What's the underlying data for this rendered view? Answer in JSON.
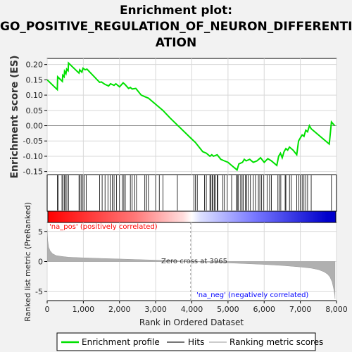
{
  "title_lines": [
    "Enrichment plot:",
    "GO_POSITIVE_REGULATION_OF_NEURON_DIFFERENTI",
    "ATION"
  ],
  "colors": {
    "enrichment_line": "#00e000",
    "hits": "#000000",
    "ranked_fill": "#b0b0b0",
    "grid": "#d8d8d8",
    "pos_label": "#ff0000",
    "neg_label": "#0000ff",
    "zero_cross_line": "#a0a0a0"
  },
  "chart_data": [
    {
      "name": "enrichment-profile",
      "type": "line",
      "ylabel": "Enrichment score (ES)",
      "xlim": [
        0,
        8000
      ],
      "ylim": [
        -0.16,
        0.22
      ],
      "yticks": [
        0.2,
        0.15,
        0.1,
        0.05,
        0.0,
        -0.05,
        -0.1,
        -0.15
      ],
      "ytick_labels": [
        "0.20",
        "0.15",
        "0.10",
        "0.05",
        "0.00",
        "-0.05",
        "-0.10",
        "-0.15"
      ],
      "grid": true,
      "x": [
        0,
        280,
        290,
        420,
        430,
        470,
        480,
        520,
        540,
        580,
        590,
        880,
        900,
        960,
        990,
        1050,
        1100,
        1450,
        1500,
        1600,
        1700,
        1750,
        1850,
        1900,
        2000,
        2100,
        2150,
        2250,
        2300,
        2350,
        2450,
        2600,
        2700,
        2800,
        3000,
        3200,
        3400,
        3965,
        4100,
        4300,
        4400,
        4500,
        4550,
        4600,
        4700,
        4800,
        4900,
        5000,
        5100,
        5200,
        5250,
        5300,
        5400,
        5450,
        5500,
        5600,
        5700,
        5800,
        5900,
        6000,
        6100,
        6200,
        6350,
        6400,
        6450,
        6500,
        6550,
        6600,
        6650,
        6700,
        6800,
        6900,
        6950,
        7000,
        7050,
        7100,
        7150,
        7200,
        7250,
        7300,
        7800,
        7860,
        7950
      ],
      "y": [
        0.15,
        0.118,
        0.16,
        0.145,
        0.165,
        0.16,
        0.178,
        0.17,
        0.185,
        0.18,
        0.205,
        0.172,
        0.183,
        0.175,
        0.188,
        0.183,
        0.185,
        0.142,
        0.143,
        0.135,
        0.13,
        0.137,
        0.132,
        0.137,
        0.127,
        0.14,
        0.135,
        0.122,
        0.125,
        0.12,
        0.122,
        0.1,
        0.095,
        0.09,
        0.07,
        0.05,
        0.025,
        -0.04,
        -0.055,
        -0.085,
        -0.09,
        -0.1,
        -0.095,
        -0.1,
        -0.095,
        -0.11,
        -0.115,
        -0.12,
        -0.13,
        -0.14,
        -0.145,
        -0.125,
        -0.12,
        -0.11,
        -0.115,
        -0.11,
        -0.12,
        -0.115,
        -0.105,
        -0.12,
        -0.108,
        -0.115,
        -0.13,
        -0.1,
        -0.09,
        -0.105,
        -0.085,
        -0.075,
        -0.08,
        -0.07,
        -0.08,
        -0.095,
        -0.05,
        -0.04,
        -0.03,
        -0.035,
        -0.015,
        -0.02,
        0.0,
        -0.01,
        -0.06,
        0.012,
        0.0
      ]
    },
    {
      "name": "hits",
      "type": "scatter",
      "x": [
        285,
        300,
        410,
        440,
        480,
        510,
        545,
        590,
        880,
        910,
        950,
        990,
        1030,
        1080,
        1450,
        1520,
        1600,
        1680,
        1740,
        1800,
        1850,
        1920,
        2000,
        2080,
        2120,
        2160,
        2300,
        2350,
        2420,
        2470,
        2700,
        2750,
        2800,
        3000,
        3100,
        3200,
        3600,
        4060,
        4100,
        4150,
        4350,
        4400,
        4500,
        4520,
        4560,
        4580,
        4620,
        4650,
        4700,
        4720,
        4860,
        4900,
        4980,
        5100,
        5230,
        5260,
        5290,
        5350,
        5390,
        5420,
        5480,
        5520,
        5560,
        5620,
        5700,
        5760,
        5840,
        5880,
        5930,
        5990,
        6080,
        6150,
        6200,
        6380,
        6420,
        6460,
        6580,
        6600,
        6700,
        6750,
        6900,
        6960,
        7000,
        7050,
        7100,
        7150,
        7200,
        7300,
        7860
      ]
    },
    {
      "name": "ranked-list",
      "type": "area",
      "ylabel": "Ranked list metric (PreRanked)",
      "xlabel": "Rank in Ordered Dataset",
      "xlim": [
        0,
        8000
      ],
      "ylim": [
        -6.5,
        6.5
      ],
      "yticks": [
        5,
        0,
        -5
      ],
      "ytick_labels": [
        "5",
        "0",
        "-5"
      ],
      "xticks": [
        0,
        1000,
        2000,
        3000,
        4000,
        5000,
        6000,
        7000,
        8000
      ],
      "xtick_labels": [
        "0",
        "1,000",
        "2,000",
        "3,000",
        "4,000",
        "5,000",
        "6,000",
        "7,000",
        "8,000"
      ],
      "grid": true,
      "x": [
        0,
        15,
        40,
        80,
        150,
        250,
        400,
        600,
        1000,
        1500,
        2000,
        2500,
        3000,
        3500,
        3965,
        4500,
        5000,
        5500,
        6000,
        6500,
        7000,
        7300,
        7500,
        7650,
        7750,
        7820,
        7880,
        7920,
        7950,
        7960
      ],
      "y": [
        5.3,
        3.5,
        2.4,
        1.8,
        1.3,
        1.0,
        0.85,
        0.72,
        0.62,
        0.52,
        0.42,
        0.33,
        0.24,
        0.14,
        0.0,
        -0.12,
        -0.22,
        -0.35,
        -0.48,
        -0.65,
        -0.9,
        -1.1,
        -1.35,
        -1.7,
        -2.1,
        -2.6,
        -3.4,
        -4.5,
        -5.5,
        -6.2
      ],
      "zero_cross_rank": 3965,
      "zero_cross_label": "Zero cross at 3965",
      "pos_label": "'na_pos' (positively correlated)",
      "neg_label": "'na_neg' (negatively correlated)"
    }
  ],
  "legend": {
    "items": [
      {
        "label": "Enrichment profile",
        "key": "enrichment"
      },
      {
        "label": "Hits",
        "key": "hits"
      },
      {
        "label": "Ranking metric scores",
        "key": "ranking"
      }
    ]
  }
}
